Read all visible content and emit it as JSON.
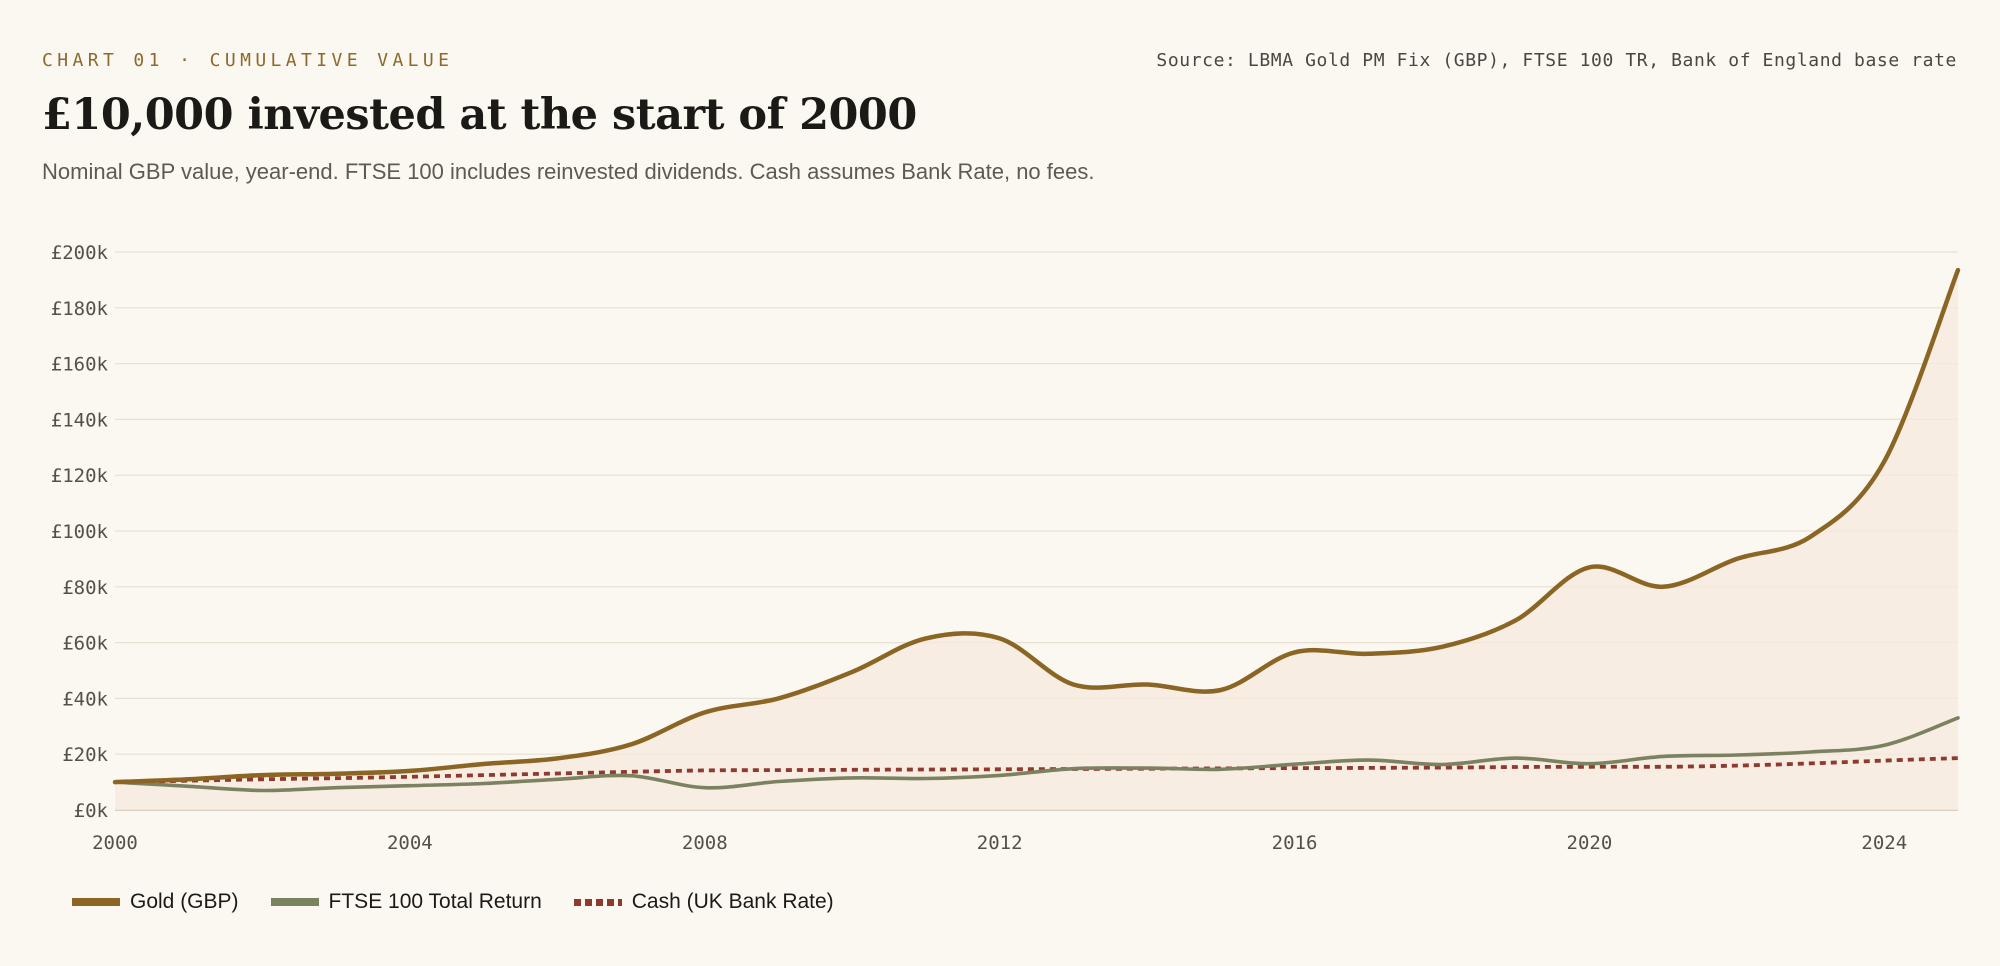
{
  "header": {
    "kicker": "CHART 01 · CUMULATIVE VALUE",
    "source": "Source: LBMA Gold PM Fix (GBP), FTSE 100 TR, Bank of England base rate",
    "title": "£10,000 invested at the start of 2000",
    "subtitle": "Nominal GBP value, year-end. FTSE 100 includes reinvested dividends. Cash assumes Bank Rate, no fees."
  },
  "colors": {
    "gold": "#8b6524",
    "ftse": "#7a8260",
    "cash": "#8e3a2f",
    "grid": "#e8e0d2",
    "area": "#f5e9dc"
  },
  "chart_data": {
    "type": "line",
    "title": "£10,000 invested at the start of 2000",
    "subtitle": "Nominal GBP value, year-end. FTSE 100 includes reinvested dividends. Cash assumes Bank Rate, no fees.",
    "xlabel": "",
    "ylabel": "",
    "x": [
      2000,
      2001,
      2002,
      2003,
      2004,
      2005,
      2006,
      2007,
      2008,
      2009,
      2010,
      2011,
      2012,
      2013,
      2014,
      2015,
      2016,
      2017,
      2018,
      2019,
      2020,
      2021,
      2022,
      2023,
      2024,
      2025
    ],
    "xlim": [
      2000,
      2025
    ],
    "ylim": [
      0,
      200000
    ],
    "x_ticks": [
      2000,
      2004,
      2008,
      2012,
      2016,
      2020,
      2024
    ],
    "x_tick_labels": [
      "2000",
      "2004",
      "2008",
      "2012",
      "2016",
      "2020",
      "2024"
    ],
    "y_ticks": [
      0,
      20000,
      40000,
      60000,
      80000,
      100000,
      120000,
      140000,
      160000,
      180000,
      200000
    ],
    "y_tick_labels": [
      "£0k",
      "£20k",
      "£40k",
      "£60k",
      "£80k",
      "£100k",
      "£120k",
      "£140k",
      "£160k",
      "£180k",
      "£200k"
    ],
    "grid": true,
    "legend_position": "bottom-left",
    "series": [
      {
        "name": "Gold (GBP)",
        "color": "#8b6524",
        "style": "solid",
        "area": true,
        "values": [
          10000,
          11000,
          12500,
          13000,
          14000,
          16500,
          18500,
          23500,
          35000,
          40000,
          49500,
          61500,
          61500,
          45000,
          45000,
          43000,
          56500,
          56000,
          58500,
          68000,
          87000,
          80000,
          90000,
          98000,
          125000,
          193500
        ]
      },
      {
        "name": "FTSE 100 Total Return",
        "color": "#7a8260",
        "style": "solid",
        "area": false,
        "values": [
          10000,
          8500,
          7000,
          8000,
          8700,
          9500,
          11000,
          12300,
          8000,
          10200,
          11500,
          11300,
          12400,
          14800,
          15000,
          14600,
          16400,
          17900,
          16300,
          18600,
          16600,
          19200,
          19700,
          20800,
          23200,
          33000
        ]
      },
      {
        "name": "Cash (UK Bank Rate)",
        "color": "#8e3a2f",
        "style": "dashed",
        "area": false,
        "values": [
          10000,
          10500,
          11000,
          11400,
          11900,
          12500,
          13100,
          13700,
          14200,
          14300,
          14400,
          14500,
          14600,
          14700,
          14800,
          14900,
          15000,
          15100,
          15200,
          15400,
          15500,
          15500,
          15900,
          16700,
          17700,
          18600
        ]
      }
    ]
  }
}
